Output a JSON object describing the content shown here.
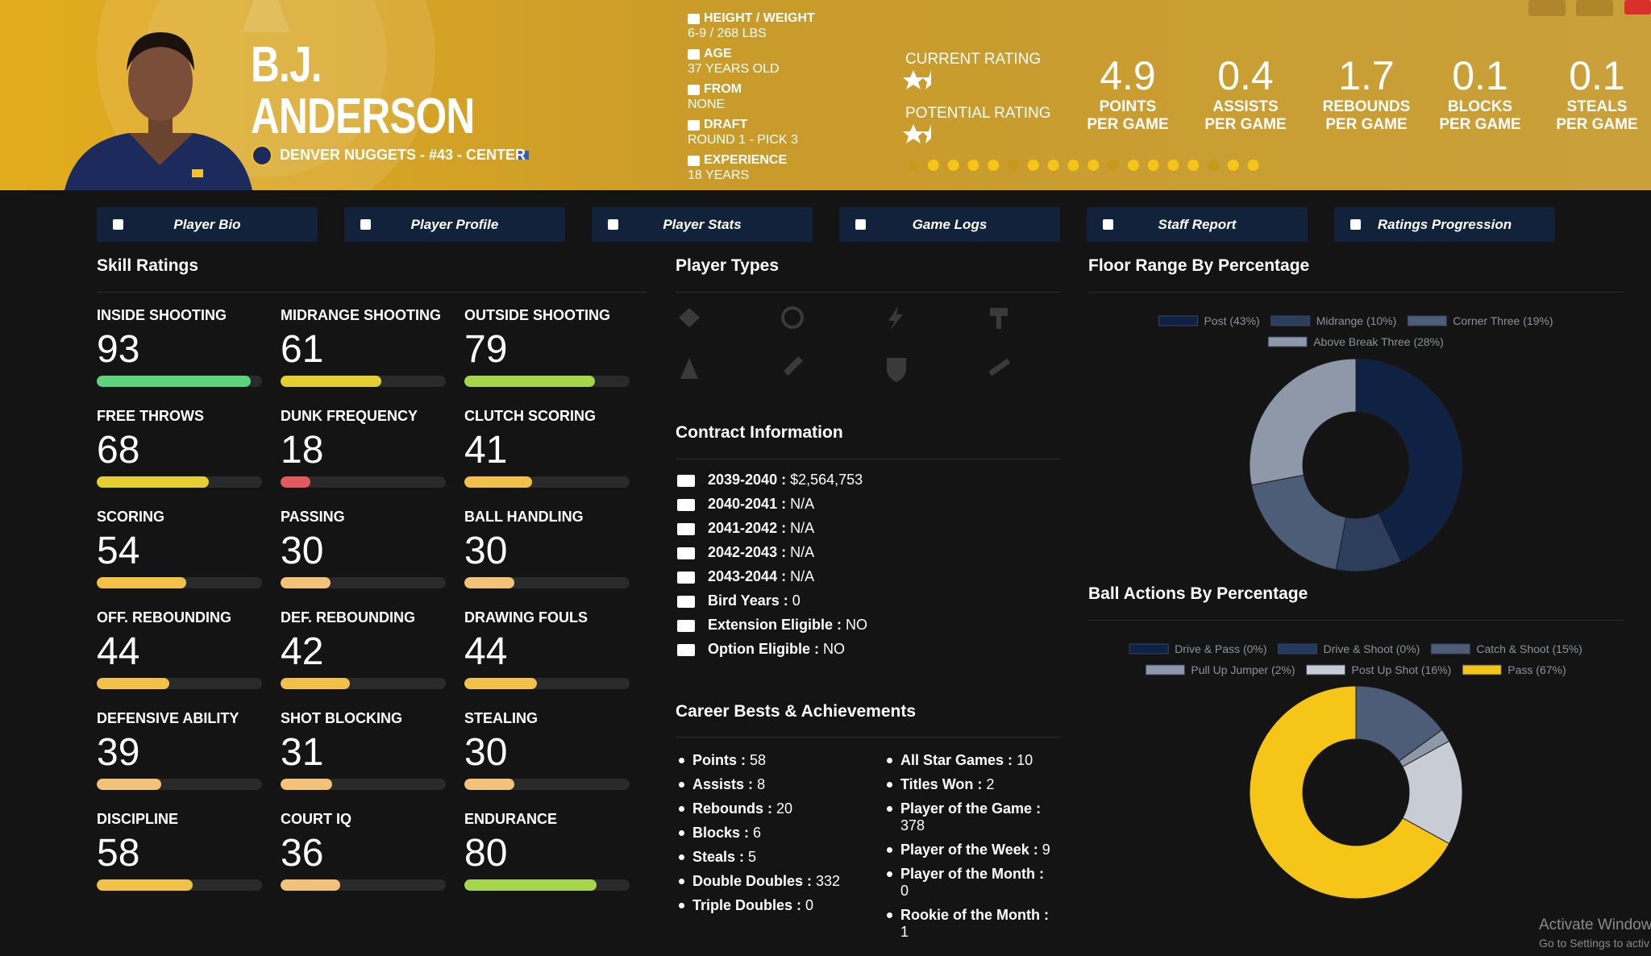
{
  "header": {
    "first_name": "B.J.",
    "last_name": "ANDERSON",
    "team_line": "DENVER NUGGETS - #43 - CENTER",
    "bio": [
      {
        "label": "HEIGHT / WEIGHT",
        "value": "6-9 / 268 LBS"
      },
      {
        "label": "AGE",
        "value": "37 YEARS OLD"
      },
      {
        "label": "FROM",
        "value": "NONE"
      },
      {
        "label": "DRAFT",
        "value": "ROUND 1 - PICK 3"
      },
      {
        "label": "EXPERIENCE",
        "value": "18 YEARS"
      }
    ],
    "current_rating": "CURRENT RATING",
    "potential_rating": "POTENTIAL RATING",
    "stats": [
      {
        "value": 4.9,
        "label": [
          "POINTS",
          "PER GAME"
        ]
      },
      {
        "value": 0.4,
        "label": [
          "ASSISTS",
          "PER GAME"
        ]
      },
      {
        "value": 1.7,
        "label": [
          "REBOUNDS",
          "PER GAME"
        ]
      },
      {
        "value": 0.1,
        "label": [
          "BLOCKS",
          "PER GAME"
        ]
      },
      {
        "value": 0.1,
        "label": [
          "STEALS",
          "PER GAME"
        ]
      }
    ]
  },
  "tabs": [
    "Player Bio",
    "Player Profile",
    "Player Stats",
    "Game Logs",
    "Staff Report",
    "Ratings Progression"
  ],
  "skill_ratings": {
    "title": "Skill Ratings",
    "xlim": [
      0,
      100
    ],
    "items": [
      {
        "label": "INSIDE SHOOTING",
        "value": 93,
        "color": "#5cd37c"
      },
      {
        "label": "MIDRANGE SHOOTING",
        "value": 61,
        "color": "#e3cf2f"
      },
      {
        "label": "OUTSIDE SHOOTING",
        "value": 79,
        "color": "#a6d64a"
      },
      {
        "label": "FREE THROWS",
        "value": 68,
        "color": "#e3cf2f"
      },
      {
        "label": "DUNK FREQUENCY",
        "value": 18,
        "color": "#e05a5f"
      },
      {
        "label": "CLUTCH SCORING",
        "value": 41,
        "color": "#f1c14a"
      },
      {
        "label": "SCORING",
        "value": 54,
        "color": "#f1c14a"
      },
      {
        "label": "PASSING",
        "value": 30,
        "color": "#f3c27a"
      },
      {
        "label": "BALL HANDLING",
        "value": 30,
        "color": "#f3c27a"
      },
      {
        "label": "OFF. REBOUNDING",
        "value": 44,
        "color": "#f1c14a"
      },
      {
        "label": "DEF. REBOUNDING",
        "value": 42,
        "color": "#f1c14a"
      },
      {
        "label": "DRAWING FOULS",
        "value": 44,
        "color": "#f1c14a"
      },
      {
        "label": "DEFENSIVE ABILITY",
        "value": 39,
        "color": "#f3c27a"
      },
      {
        "label": "SHOT BLOCKING",
        "value": 31,
        "color": "#f3c27a"
      },
      {
        "label": "STEALING",
        "value": 30,
        "color": "#f3c27a"
      },
      {
        "label": "DISCIPLINE",
        "value": 58,
        "color": "#f1c14a"
      },
      {
        "label": "COURT IQ",
        "value": 36,
        "color": "#f3c27a"
      },
      {
        "label": "ENDURANCE",
        "value": 80,
        "color": "#a6d64a"
      }
    ]
  },
  "player_types": {
    "title": "Player Types"
  },
  "contract": {
    "title": "Contract Information",
    "items": [
      {
        "label": "2039-2040 :",
        "value": "$2,564,753"
      },
      {
        "label": "2040-2041 :",
        "value": "N/A"
      },
      {
        "label": "2041-2042 :",
        "value": "N/A"
      },
      {
        "label": "2042-2043 :",
        "value": "N/A"
      },
      {
        "label": "2043-2044 :",
        "value": "N/A"
      },
      {
        "label": "Bird Years :",
        "value": 0
      },
      {
        "label": "Extension Eligible :",
        "value": "NO"
      },
      {
        "label": "Option Eligible :",
        "value": "NO"
      }
    ]
  },
  "career": {
    "title": "Career Bests & Achievements",
    "left": [
      {
        "label": "Points :",
        "value": 58
      },
      {
        "label": "Assists :",
        "value": 8
      },
      {
        "label": "Rebounds :",
        "value": 20
      },
      {
        "label": "Blocks :",
        "value": 6
      },
      {
        "label": "Steals :",
        "value": 5
      },
      {
        "label": "Double Doubles :",
        "value": 332
      },
      {
        "label": "Triple Doubles :",
        "value": 0
      }
    ],
    "right": [
      {
        "label": "All Star Games :",
        "value": 10
      },
      {
        "label": "Titles Won :",
        "value": 2
      },
      {
        "label": "Player of the Game :",
        "value": 378
      },
      {
        "label": "Player of the Week :",
        "value": 9
      },
      {
        "label": "Player of the Month :",
        "value": 0
      },
      {
        "label": "Rookie of the Month :",
        "value": 1
      }
    ]
  },
  "floor_range": {
    "type": "pie",
    "title": "Floor Range By Percentage",
    "categories": [
      "Post (43%)",
      "Midrange (10%)",
      "Corner Three (19%)",
      "Above Break Three (28%)"
    ],
    "values": [
      43,
      10,
      19,
      28
    ],
    "colors": [
      "#0f2244",
      "#2c3e5c",
      "#4d5d78",
      "#8e98a8"
    ]
  },
  "ball_actions": {
    "type": "pie",
    "title": "Ball Actions By Percentage",
    "categories": [
      "Drive & Pass (0%)",
      "Drive & Shoot (0%)",
      "Catch & Shoot (15%)",
      "Pull Up Jumper (2%)",
      "Post Up Shot (16%)",
      "Pass (67%)"
    ],
    "values": [
      0,
      0,
      15,
      2,
      16,
      67
    ],
    "colors": [
      "#0f2244",
      "#23385a",
      "#4d5d78",
      "#8e98a8",
      "#c8ccd4",
      "#f5c518"
    ]
  },
  "watermark": {
    "title": "Activate Windows",
    "subtitle": "Go to Settings to activ"
  }
}
